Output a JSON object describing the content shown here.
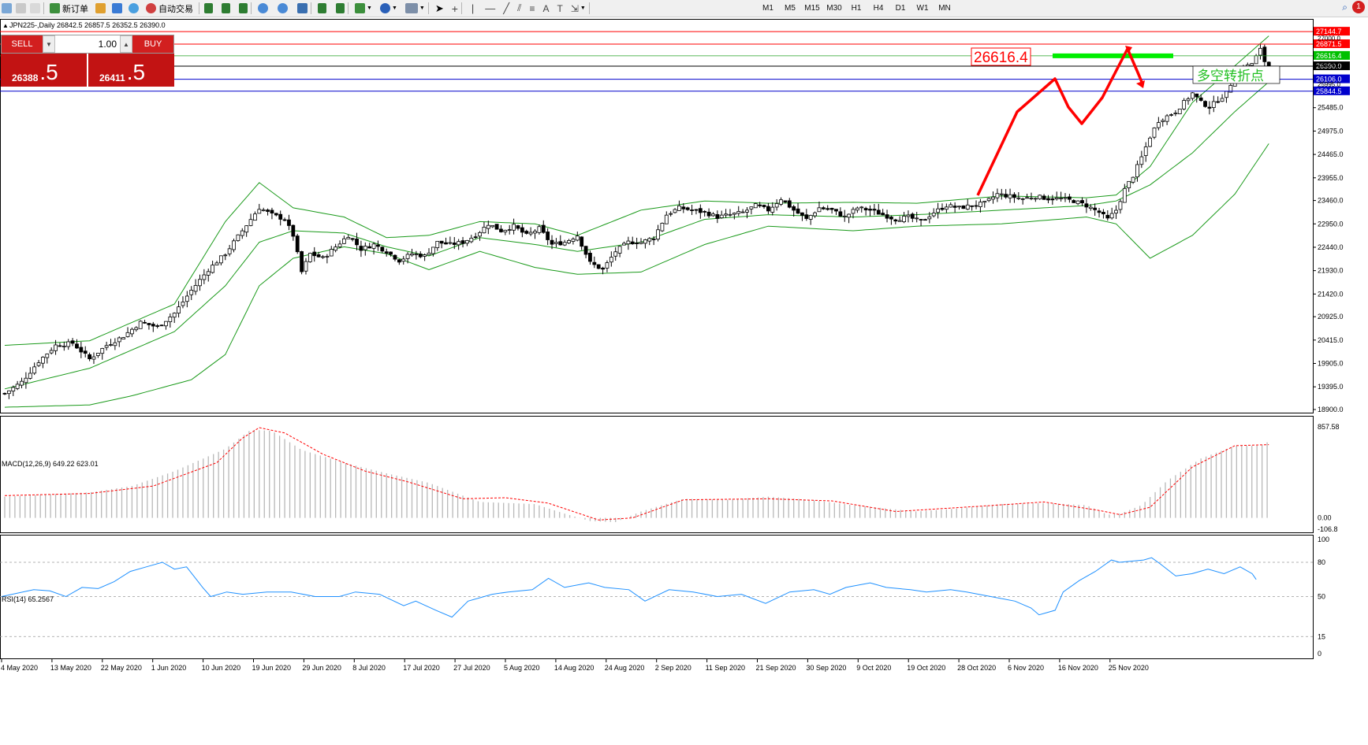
{
  "toolbar": {
    "new_order": "新订单",
    "auto_trading": "自动交易",
    "timeframes": [
      "M1",
      "M5",
      "M15",
      "M30",
      "H1",
      "H4",
      "D1",
      "W1",
      "MN"
    ],
    "notification_count": "1"
  },
  "chart": {
    "header": "JPN225-,Daily  26842.5 26857.5 26352.5 26390.0",
    "big_label": "26616.4",
    "annotation": "多空转折点",
    "macd_label": "MACD(12,26,9) 649.22 623.01",
    "rsi_label": "RSI(14) 65.2567"
  },
  "trade_panel": {
    "sell_label": "SELL",
    "buy_label": "BUY",
    "volume": "1.00",
    "sell_small": "26388",
    "sell_big": ".5",
    "buy_small": "26411",
    "buy_big": ".5"
  },
  "colors": {
    "sell_red": "#c21313",
    "bb_green": "#1a9a1a",
    "arrow_red": "#ff0000",
    "level_green": "#00ee00",
    "macd_signal": "#ff0000",
    "rsi_line": "#1e90ff"
  },
  "chart_data": {
    "type": "candlestick",
    "symbol": "JPN225-",
    "timeframe": "Daily",
    "ohlc_last": {
      "open": 26842.5,
      "high": 26857.5,
      "low": 26352.5,
      "close": 26390.0
    },
    "price_axis_ticks": [
      "25485.0",
      "24975.0",
      "24465.0",
      "23955.0",
      "23460.0",
      "22950.0",
      "22440.0",
      "21930.0",
      "21420.0",
      "20925.0",
      "20415.0",
      "19905.0",
      "19395.0",
      "18900.0"
    ],
    "price_ylim": [
      18900,
      27250
    ],
    "horizontal_lines": [
      {
        "label": "27144.7",
        "price": 27144.7,
        "color": "#ff0000"
      },
      {
        "label": "26871.5",
        "price": 26871.5,
        "color": "#ff0000"
      },
      {
        "label": "26616.4",
        "price": 26616.4,
        "color": "#00c000"
      },
      {
        "label": "26390.0",
        "price": 26390.0,
        "color": "#000000"
      },
      {
        "label": "26106.0",
        "price": 26106.0,
        "color": "#0000cc"
      },
      {
        "label": "25844.5",
        "price": 25844.5,
        "color": "#0000cc"
      }
    ],
    "extra_price_labels": [
      "27000.0",
      "26424.0",
      "25995.0"
    ],
    "date_labels": [
      "4 May 2020",
      "13 May 2020",
      "22 May 2020",
      "1 Jun 2020",
      "10 Jun 2020",
      "19 Jun 2020",
      "29 Jun 2020",
      "8 Jul 2020",
      "17 Jul 2020",
      "27 Jul 2020",
      "5 Aug 2020",
      "14 Aug 2020",
      "24 Aug 2020",
      "2 Sep 2020",
      "11 Sep 2020",
      "21 Sep 2020",
      "30 Sep 2020",
      "9 Oct 2020",
      "19 Oct 2020",
      "28 Oct 2020",
      "6 Nov 2020",
      "16 Nov 2020",
      "25 Nov 2020"
    ],
    "close_path": [
      [
        0,
        19250
      ],
      [
        4,
        19500
      ],
      [
        8,
        19950
      ],
      [
        12,
        20300
      ],
      [
        16,
        20350
      ],
      [
        20,
        20000
      ],
      [
        24,
        20300
      ],
      [
        28,
        20500
      ],
      [
        32,
        20800
      ],
      [
        36,
        20700
      ],
      [
        40,
        21000
      ],
      [
        44,
        21500
      ],
      [
        48,
        21950
      ],
      [
        52,
        22300
      ],
      [
        56,
        22800
      ],
      [
        60,
        23300
      ],
      [
        63,
        23150
      ],
      [
        66,
        23050
      ],
      [
        68,
        22700
      ],
      [
        70,
        21900
      ],
      [
        72,
        22300
      ],
      [
        75,
        22200
      ],
      [
        78,
        22450
      ],
      [
        81,
        22700
      ],
      [
        84,
        22400
      ],
      [
        87,
        22500
      ],
      [
        90,
        22350
      ],
      [
        93,
        22150
      ],
      [
        96,
        22300
      ],
      [
        99,
        22250
      ],
      [
        102,
        22550
      ],
      [
        105,
        22500
      ],
      [
        108,
        22550
      ],
      [
        111,
        22700
      ],
      [
        114,
        22950
      ],
      [
        117,
        22800
      ],
      [
        120,
        22900
      ],
      [
        123,
        22700
      ],
      [
        126,
        22850
      ],
      [
        129,
        22500
      ],
      [
        132,
        22550
      ],
      [
        135,
        22700
      ],
      [
        138,
        22100
      ],
      [
        141,
        21950
      ],
      [
        144,
        22350
      ],
      [
        147,
        22550
      ],
      [
        150,
        22550
      ],
      [
        153,
        22650
      ],
      [
        156,
        23150
      ],
      [
        159,
        23300
      ],
      [
        162,
        23250
      ],
      [
        165,
        23200
      ],
      [
        168,
        23100
      ],
      [
        171,
        23150
      ],
      [
        174,
        23200
      ],
      [
        177,
        23350
      ],
      [
        180,
        23250
      ],
      [
        183,
        23500
      ],
      [
        186,
        23250
      ],
      [
        189,
        23050
      ],
      [
        192,
        23300
      ],
      [
        195,
        23250
      ],
      [
        198,
        23100
      ],
      [
        201,
        23300
      ],
      [
        204,
        23250
      ],
      [
        207,
        23150
      ],
      [
        210,
        23050
      ],
      [
        213,
        23100
      ],
      [
        216,
        23000
      ],
      [
        219,
        23200
      ],
      [
        222,
        23350
      ],
      [
        225,
        23300
      ],
      [
        228,
        23350
      ],
      [
        231,
        23400
      ],
      [
        234,
        23600
      ],
      [
        237,
        23550
      ],
      [
        240,
        23500
      ],
      [
        243,
        23550
      ],
      [
        246,
        23500
      ],
      [
        249,
        23500
      ],
      [
        252,
        23450
      ],
      [
        255,
        23350
      ],
      [
        258,
        23200
      ],
      [
        260,
        23050
      ],
      [
        262,
        23250
      ],
      [
        264,
        23700
      ],
      [
        266,
        24000
      ],
      [
        268,
        24400
      ],
      [
        270,
        24850
      ],
      [
        272,
        25200
      ],
      [
        274,
        25300
      ],
      [
        276,
        25400
      ],
      [
        278,
        25600
      ],
      [
        280,
        25800
      ],
      [
        282,
        25600
      ],
      [
        284,
        25500
      ],
      [
        286,
        25650
      ],
      [
        288,
        25800
      ],
      [
        290,
        26200
      ],
      [
        292,
        26350
      ],
      [
        294,
        26450
      ],
      [
        296,
        26750
      ],
      [
        297,
        26500
      ],
      [
        298,
        26390
      ]
    ],
    "bollinger": {
      "upper": [
        [
          0,
          20300
        ],
        [
          20,
          20400
        ],
        [
          40,
          21200
        ],
        [
          52,
          23000
        ],
        [
          60,
          23850
        ],
        [
          68,
          23300
        ],
        [
          80,
          23100
        ],
        [
          90,
          22650
        ],
        [
          100,
          22700
        ],
        [
          112,
          23000
        ],
        [
          125,
          22950
        ],
        [
          135,
          22700
        ],
        [
          150,
          23250
        ],
        [
          165,
          23450
        ],
        [
          180,
          23400
        ],
        [
          200,
          23420
        ],
        [
          215,
          23400
        ],
        [
          235,
          23560
        ],
        [
          255,
          23520
        ],
        [
          262,
          23580
        ],
        [
          270,
          24200
        ],
        [
          280,
          25600
        ],
        [
          290,
          26400
        ],
        [
          298,
          27050
        ]
      ],
      "middle": [
        [
          0,
          19350
        ],
        [
          20,
          19800
        ],
        [
          40,
          20600
        ],
        [
          52,
          21600
        ],
        [
          60,
          22550
        ],
        [
          68,
          22800
        ],
        [
          80,
          22750
        ],
        [
          90,
          22450
        ],
        [
          100,
          22250
        ],
        [
          112,
          22650
        ],
        [
          125,
          22500
        ],
        [
          135,
          22350
        ],
        [
          150,
          22550
        ],
        [
          165,
          23050
        ],
        [
          180,
          23150
        ],
        [
          200,
          23100
        ],
        [
          215,
          23150
        ],
        [
          235,
          23250
        ],
        [
          255,
          23350
        ],
        [
          262,
          23450
        ],
        [
          270,
          23800
        ],
        [
          280,
          24500
        ],
        [
          290,
          25400
        ],
        [
          298,
          26050
        ]
      ],
      "lower": [
        [
          0,
          18950
        ],
        [
          20,
          19000
        ],
        [
          30,
          19200
        ],
        [
          44,
          19550
        ],
        [
          52,
          20100
        ],
        [
          60,
          21600
        ],
        [
          68,
          22200
        ],
        [
          80,
          22450
        ],
        [
          90,
          22300
        ],
        [
          100,
          21950
        ],
        [
          112,
          22350
        ],
        [
          125,
          22000
        ],
        [
          135,
          21850
        ],
        [
          150,
          21900
        ],
        [
          165,
          22500
        ],
        [
          180,
          22900
        ],
        [
          200,
          22800
        ],
        [
          215,
          22900
        ],
        [
          235,
          22950
        ],
        [
          255,
          23100
        ],
        [
          262,
          22950
        ],
        [
          270,
          22200
        ],
        [
          280,
          22700
        ],
        [
          290,
          23600
        ],
        [
          298,
          24700
        ]
      ]
    },
    "macd": {
      "label": "MACD(12,26,9) 649.22 623.01",
      "ticks": [
        "857.58",
        "0.00",
        "-106.8"
      ],
      "ylim": [
        -106.8,
        857.58
      ],
      "histogram": [
        [
          0,
          200
        ],
        [
          20,
          240
        ],
        [
          30,
          300
        ],
        [
          40,
          440
        ],
        [
          52,
          650
        ],
        [
          58,
          830
        ],
        [
          63,
          820
        ],
        [
          70,
          640
        ],
        [
          80,
          520
        ],
        [
          90,
          420
        ],
        [
          100,
          330
        ],
        [
          112,
          150
        ],
        [
          125,
          130
        ],
        [
          132,
          40
        ],
        [
          138,
          -30
        ],
        [
          144,
          -40
        ],
        [
          150,
          60
        ],
        [
          160,
          180
        ],
        [
          170,
          170
        ],
        [
          180,
          200
        ],
        [
          190,
          170
        ],
        [
          200,
          120
        ],
        [
          215,
          60
        ],
        [
          225,
          90
        ],
        [
          235,
          130
        ],
        [
          245,
          140
        ],
        [
          255,
          120
        ],
        [
          260,
          30
        ],
        [
          263,
          40
        ],
        [
          268,
          120
        ],
        [
          274,
          350
        ],
        [
          282,
          560
        ],
        [
          290,
          680
        ],
        [
          296,
          680
        ],
        [
          298,
          720
        ]
      ],
      "signal": [
        [
          0,
          210
        ],
        [
          20,
          230
        ],
        [
          35,
          300
        ],
        [
          50,
          520
        ],
        [
          56,
          750
        ],
        [
          60,
          850
        ],
        [
          66,
          800
        ],
        [
          75,
          600
        ],
        [
          85,
          440
        ],
        [
          95,
          340
        ],
        [
          108,
          180
        ],
        [
          118,
          190
        ],
        [
          128,
          140
        ],
        [
          140,
          -20
        ],
        [
          148,
          0
        ],
        [
          160,
          170
        ],
        [
          180,
          180
        ],
        [
          195,
          160
        ],
        [
          210,
          60
        ],
        [
          230,
          110
        ],
        [
          245,
          150
        ],
        [
          258,
          70
        ],
        [
          263,
          30
        ],
        [
          270,
          100
        ],
        [
          280,
          480
        ],
        [
          290,
          680
        ],
        [
          298,
          690
        ]
      ]
    },
    "rsi": {
      "label": "RSI(14) 65.2567",
      "ticks": [
        "100",
        "80",
        "50",
        "15",
        "0"
      ],
      "ylim": [
        0,
        100
      ],
      "levels": [
        80,
        50,
        15
      ],
      "values": [
        [
          0,
          50
        ],
        [
          8,
          56
        ],
        [
          12,
          55
        ],
        [
          16,
          50
        ],
        [
          20,
          58
        ],
        [
          24,
          57
        ],
        [
          28,
          63
        ],
        [
          32,
          72
        ],
        [
          36,
          76
        ],
        [
          40,
          80
        ],
        [
          43,
          74
        ],
        [
          46,
          76
        ],
        [
          50,
          58
        ],
        [
          52,
          50
        ],
        [
          56,
          54
        ],
        [
          60,
          52
        ],
        [
          66,
          54
        ],
        [
          72,
          54
        ],
        [
          78,
          50
        ],
        [
          84,
          50
        ],
        [
          88,
          54
        ],
        [
          94,
          52
        ],
        [
          100,
          42
        ],
        [
          103,
          46
        ],
        [
          108,
          38
        ],
        [
          112,
          32
        ],
        [
          116,
          46
        ],
        [
          122,
          52
        ],
        [
          126,
          54
        ],
        [
          132,
          56
        ],
        [
          136,
          66
        ],
        [
          140,
          58
        ],
        [
          146,
          62
        ],
        [
          150,
          58
        ],
        [
          156,
          56
        ],
        [
          160,
          46
        ],
        [
          166,
          56
        ],
        [
          172,
          54
        ],
        [
          178,
          50
        ],
        [
          184,
          52
        ],
        [
          190,
          44
        ],
        [
          196,
          54
        ],
        [
          202,
          56
        ],
        [
          206,
          52
        ],
        [
          210,
          58
        ],
        [
          216,
          62
        ],
        [
          220,
          58
        ],
        [
          226,
          56
        ],
        [
          230,
          54
        ],
        [
          236,
          56
        ],
        [
          240,
          54
        ],
        [
          246,
          50
        ],
        [
          252,
          46
        ],
        [
          256,
          40
        ],
        [
          258,
          34
        ],
        [
          262,
          38
        ],
        [
          264,
          54
        ],
        [
          268,
          64
        ],
        [
          272,
          72
        ],
        [
          276,
          82
        ],
        [
          278,
          80
        ],
        [
          284,
          82
        ],
        [
          286,
          84
        ],
        [
          288,
          79
        ],
        [
          292,
          68
        ],
        [
          296,
          70
        ],
        [
          300,
          74
        ],
        [
          304,
          70
        ],
        [
          308,
          76
        ],
        [
          311,
          70
        ],
        [
          312,
          65
        ]
      ]
    }
  }
}
